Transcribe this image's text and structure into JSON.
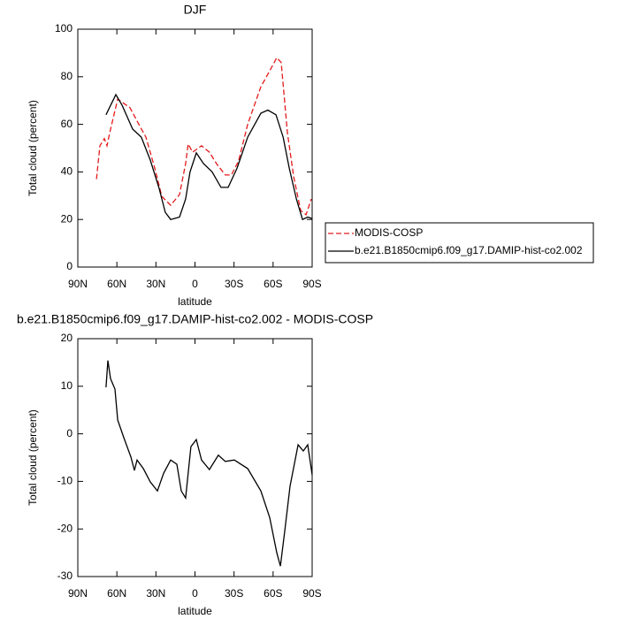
{
  "chart_data": [
    {
      "type": "line",
      "title": "DJF",
      "xlabel": "latitude",
      "ylabel": "Total cloud (percent)",
      "xlim": [
        90,
        -90
      ],
      "xticks": [
        {
          "value": 90,
          "label": "90N"
        },
        {
          "value": 60,
          "label": "60N"
        },
        {
          "value": 30,
          "label": "30N"
        },
        0,
        {
          "value": -30,
          "label": "30S"
        },
        {
          "value": -60,
          "label": "60S"
        },
        {
          "value": -90,
          "label": "90S"
        }
      ],
      "ylim": [
        0,
        100
      ],
      "yticks": [
        0,
        20,
        40,
        60,
        80,
        100
      ],
      "legend": "right",
      "series": [
        {
          "name": "MODIS-COSP",
          "color": "#e41a1c",
          "dash": true,
          "x": [
            75.7,
            73,
            69.6,
            67.6,
            65.5,
            59.4,
            49.9,
            43.1,
            37.7,
            30.9,
            25.5,
            18.7,
            11.9,
            7.2,
            5.2,
            1.8,
            -5,
            -11.1,
            -16.5,
            -23.3,
            -28,
            -33.5,
            -40.5,
            -50.6,
            -57.4,
            -62.8,
            -66.2,
            -71,
            -75.8,
            -81.2,
            -85.3,
            -89.3
          ],
          "values": [
            37,
            51,
            54,
            51,
            56.5,
            70.6,
            67,
            60,
            54.6,
            41.6,
            29.7,
            26,
            30.5,
            43.5,
            51.7,
            48.3,
            51,
            48.3,
            43.5,
            38.7,
            38.7,
            44.6,
            60,
            75.8,
            82.5,
            88,
            86,
            56.5,
            38,
            23.8,
            22,
            28.6
          ]
        },
        {
          "name": "b.e21.B1850cmip6.f09_g17.DAMIP-hist-co2.002",
          "color": "#000000",
          "dash": false,
          "x": [
            68.3,
            60.8,
            56,
            47.9,
            41.2,
            34.4,
            27.5,
            22.8,
            18.7,
            11.9,
            7.2,
            3.8,
            -1,
            -6.5,
            -13.2,
            -20,
            -25.5,
            -32.3,
            -40.5,
            -50.6,
            -56,
            -62.2,
            -67.7,
            -72.4,
            -77.9,
            -82.6,
            -86.6,
            -90
          ],
          "values": [
            64,
            72.5,
            68,
            58,
            54.6,
            45,
            33,
            23,
            20,
            21,
            28.6,
            40,
            48,
            43.5,
            40,
            33.5,
            33.5,
            41.6,
            54.6,
            64.7,
            66,
            64,
            54.6,
            41.6,
            28.6,
            20,
            21,
            20.4
          ]
        }
      ]
    },
    {
      "type": "line",
      "title": "b.e21.B1850cmip6.f09_g17.DAMIP-hist-co2.002 - MODIS-COSP",
      "xlabel": "latitude",
      "ylabel": "Total cloud (percent)",
      "xlim": [
        90,
        -90
      ],
      "xticks": [
        {
          "value": 90,
          "label": "90N"
        },
        {
          "value": 60,
          "label": "60N"
        },
        {
          "value": 30,
          "label": "30N"
        },
        0,
        {
          "value": -30,
          "label": "30S"
        },
        {
          "value": -60,
          "label": "60S"
        },
        {
          "value": -90,
          "label": "90S"
        }
      ],
      "ylim": [
        -30,
        20
      ],
      "yticks": [
        -30,
        -20,
        -10,
        0,
        10,
        20
      ],
      "series": [
        {
          "color": "#000000",
          "dash": false,
          "x": [
            68.3,
            66.9,
            64.9,
            61.5,
            59.4,
            54.7,
            49.2,
            46.5,
            44.5,
            39.7,
            34.4,
            28.9,
            24.1,
            18.7,
            13.9,
            10.5,
            7.2,
            3.1,
            -1,
            -5,
            -11.1,
            -17.9,
            -23.3,
            -30.2,
            -40.5,
            -50.6,
            -57.4,
            -62.8,
            -65.6,
            -69,
            -73,
            -79.2,
            -83.2,
            -86.6,
            -90
          ],
          "values": [
            9.8,
            15.4,
            11.6,
            9.4,
            2.9,
            -0.8,
            -4.9,
            -7.7,
            -5.5,
            -7.3,
            -10.1,
            -12,
            -8.3,
            -5.5,
            -6.4,
            -12,
            -13.5,
            -2.7,
            -1.2,
            -5.5,
            -7.5,
            -4.5,
            -5.8,
            -5.5,
            -7.3,
            -12,
            -17.6,
            -25,
            -27.8,
            -20.3,
            -11,
            -2.3,
            -3.6,
            -2.3,
            -8.6
          ]
        }
      ]
    }
  ]
}
